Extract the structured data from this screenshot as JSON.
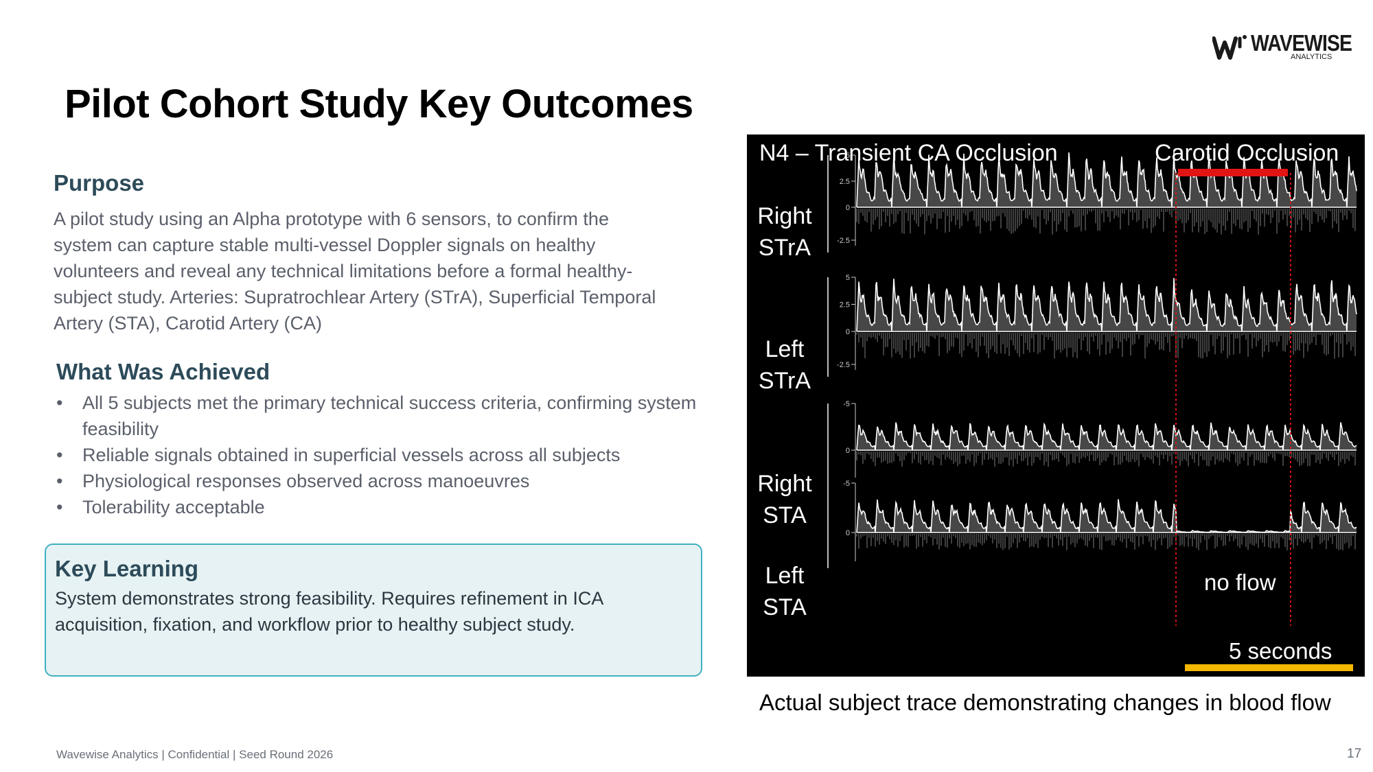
{
  "logo": {
    "brand": "WAVEWISE",
    "sub": "ANALYTICS"
  },
  "slide": {
    "title": "Pilot Cohort Study Key Outcomes",
    "page_number": "17"
  },
  "purpose": {
    "heading": "Purpose",
    "lines": [
      "A pilot study using an Alpha prototype with 6 sensors, to confirm the",
      "system can capture stable multi-vessel Doppler signals on healthy",
      "volunteers and reveal any technical limitations before a formal healthy-",
      "subject study. Arteries: Supratrochlear Artery (STrA), Superficial Temporal",
      "Artery (STA), Carotid Artery (CA)"
    ]
  },
  "achieved": {
    "heading": "What Was Achieved",
    "items": [
      "All 5 subjects met the primary technical success criteria, confirming system feasibility",
      "Reliable signals obtained in superficial vessels across all subjects",
      "Physiological responses observed across manoeuvres",
      "Tolerability acceptable"
    ]
  },
  "key_learning": {
    "heading": "Key Learning",
    "lines": [
      "System demonstrates strong feasibility. Requires refinement in ICA",
      "acquisition, fixation, and workflow prior to healthy subject study."
    ]
  },
  "figure": {
    "title": "N4 – Transient CA Occlusion",
    "occlusion_label": "Carotid Occlusion",
    "rows": [
      {
        "label_line1": "Right",
        "label_line2": "STrA",
        "ticks": [
          "5",
          "2.5",
          "0",
          "-2.5"
        ]
      },
      {
        "label_line1": "Left",
        "label_line2": "STrA",
        "ticks": [
          "5",
          "2.5",
          "0",
          "-2.5"
        ]
      },
      {
        "label_line1": "Right",
        "label_line2": "STA",
        "ticks": [
          "-5",
          "0"
        ]
      },
      {
        "label_line1": "Left",
        "label_line2": "STA",
        "ticks": [
          "-5",
          "0"
        ]
      }
    ],
    "no_flow_label": "no flow",
    "scale_label": "5 seconds",
    "colors": {
      "occlusion_bar": "#e31414",
      "scale_bar": "#f5b800",
      "background": "#000000",
      "trace": "#ffffff"
    }
  },
  "caption": "Actual subject trace demonstrating changes in blood flow",
  "footer": "Wavewise Analytics  |  Confidential  |  Seed Round 2026"
}
